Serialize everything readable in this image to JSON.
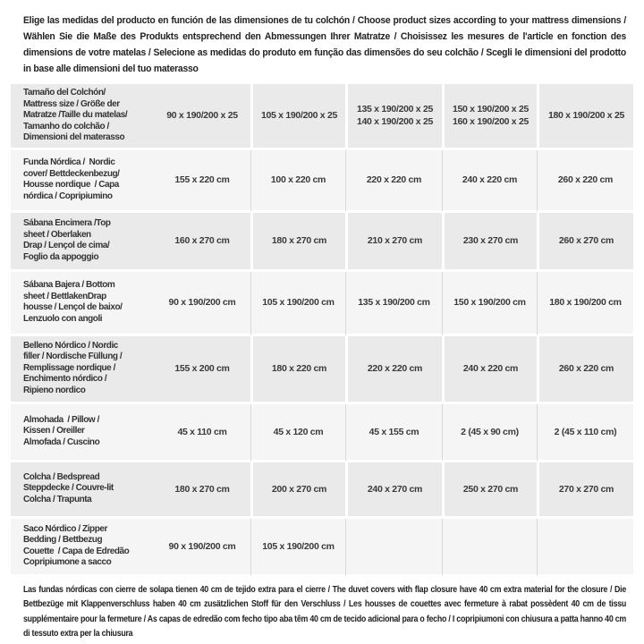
{
  "header": {
    "text": "Elige las medidas del producto en función de las dimensiones de tu colchón / Choose product sizes according to your mattress dimensions / Wählen Sie die Maße des Produkts entsprechend den Abmessungen Ihrer Matratze / Choisissez les mesures de l'article en fonction des dimensions de votre matelas / Selecione as medidas do produto em função das dimensões do seu colchão / Scegli le dimensioni del prodotto in base alle dimensioni del tuo materasso"
  },
  "table": {
    "rows": [
      {
        "label": "Tamaño del Colchón/\nMattress size / Größe der\nMatratze /Taille du matelas/\nTamanho do colchão /\nDimensioni del materasso",
        "values": [
          "90 x 190/200 x 25",
          "105 x 190/200 x 25",
          "135 x 190/200 x 25\n140 x 190/200 x 25",
          "150 x 190/200 x 25\n160 x 190/200 x 25",
          "180 x 190/200 x 25"
        ]
      },
      {
        "label": "Funda Nórdica /  Nordic\ncover/ Bettdeckenbezug/\nHousse nordique  / Capa\nnórdica / Copripiumino",
        "values": [
          "155 x 220 cm",
          "100 x 220 cm",
          "220 x 220 cm",
          "240 x 220 cm",
          "260 x 220 cm"
        ]
      },
      {
        "label": "Sábana Encimera /Top\nsheet / Oberlaken\nDrap / Lençol de cima/\nFoglio da appoggio",
        "values": [
          "160 x 270 cm",
          "180 x 270 cm",
          "210 x 270 cm",
          "230 x 270 cm",
          "260 x 270 cm"
        ]
      },
      {
        "label": "Sábana Bajera / Bottom\nsheet / BettlakenDrap\nhousse / Lençol de baixo/\nLenzuolo con angoli",
        "values": [
          "90 x 190/200 cm",
          "105 x 190/200 cm",
          "135 x 190/200 cm",
          "150 x 190/200 cm",
          "180 x 190/200 cm"
        ]
      },
      {
        "label": "Belleno Nórdico / Nordic\nfiller / Nordische Füllung /\nRemplissage nordique /\nEnchimento nórdico /\nRipieno nordico",
        "values": [
          "155 x 200 cm",
          "180 x 220 cm",
          "220 x 220 cm",
          "240 x 220 cm",
          "260 x 220 cm"
        ]
      },
      {
        "label": "Almohada  / Pillow /\nKissen / Oreiller\nAlmofada / Cuscino",
        "values": [
          "45 x 110 cm",
          "45 x 120 cm",
          "45 x 155 cm",
          "2 (45 x 90 cm)",
          "2 (45 x 110 cm)"
        ]
      },
      {
        "label": "Colcha / Bedspread\nSteppdecke / Couvre-lit\nColcha / Trapunta",
        "values": [
          "180 x 270 cm",
          "200 x 270 cm",
          "240 x 270 cm",
          "250 x 270 cm",
          "270 x 270 cm"
        ]
      },
      {
        "label": "Saco Nórdico / Zipper\nBedding / Bettbezug\nCouette  / Capa de Edredão\nCopripiumone a sacco",
        "values": [
          "90 x 190/200 cm",
          "105 x 190/200 cm",
          "",
          "",
          ""
        ]
      }
    ]
  },
  "footer": {
    "text": "Las fundas nórdicas con cierre de solapa tienen 40 cm de tejido extra para el cierre  / The duvet covers with flap closure have 40 cm extra material for the closure / Die Bettbezüge mit Klappenverschluss haben 40 cm zusätzlichen Stoff für den Verschluss / Les housses de couettes avec fermeture à rabat possèdent 40 cm de tissu supplémentaire pour la fermeture / As capas de edredão com fecho tipo aba têm 40 cm de tecido adicional para o fecho / I copripiumoni con chiusura a patta hanno 40 cm di tessuto extra per la chiusura"
  },
  "colors": {
    "row_shaded": "#eaeaea",
    "row_light": "#f5f5f5",
    "divider_light": "#d9d9d9",
    "text": "#2d2d2d",
    "background": "#ffffff"
  }
}
